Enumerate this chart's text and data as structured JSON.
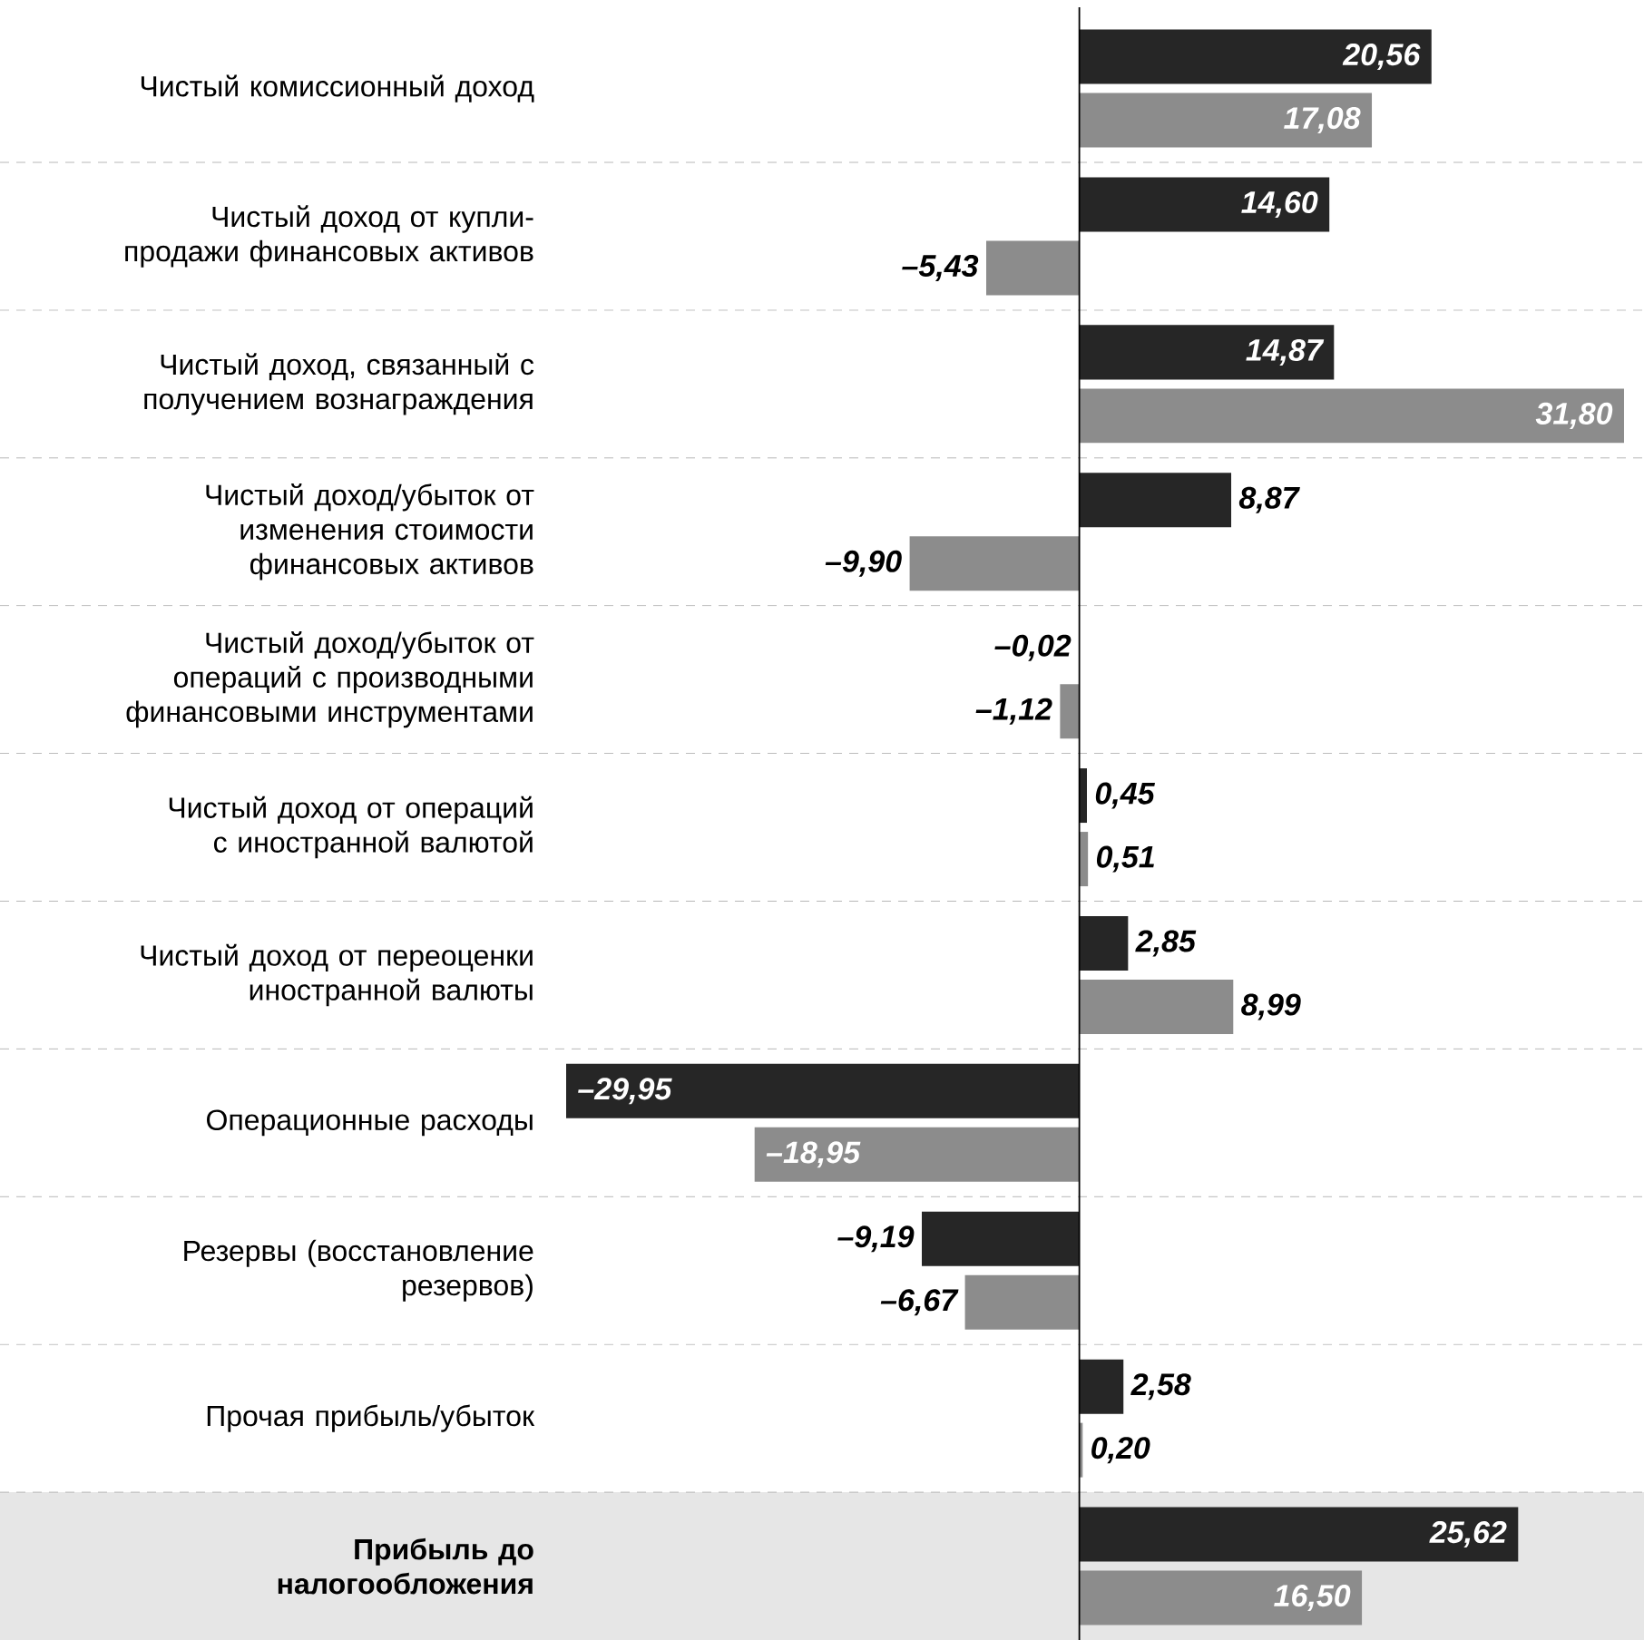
{
  "chart_data": {
    "type": "bar",
    "orientation": "horizontal",
    "categories": [
      "Чистый комиссионный доход",
      "Чистый доход от купли-продажи финансовых активов",
      "Чистый доход, связанный с получением вознаграждения",
      "Чистый доход/убыток от изменения стоимости финансовых активов",
      "Чистый доход/убыток от операций с производными финансовыми инструментами",
      "Чистый доход от операций с иностранной валютой",
      "Чистый доход от переоценки иностранной валюты",
      "Операционные расходы",
      "Резервы (восстановление резервов)",
      "Прочая прибыль/убыток",
      "Прибыль до налогообложения"
    ],
    "series": [
      {
        "color": "#262626",
        "values": [
          20.56,
          14.6,
          14.87,
          8.87,
          -0.02,
          0.45,
          2.85,
          -29.95,
          -9.19,
          2.58,
          25.62
        ],
        "value_labels": [
          "20,56",
          "14,60",
          "14,87",
          "8,87",
          "–0,02",
          "0,45",
          "2,85",
          "–29,95",
          "–9,19",
          "2,58",
          "25,62"
        ]
      },
      {
        "color": "#8c8c8c",
        "values": [
          17.08,
          -5.43,
          31.8,
          -9.9,
          -1.12,
          0.51,
          8.99,
          -18.95,
          -6.67,
          0.2,
          16.5
        ],
        "value_labels": [
          "17,08",
          "–5,43",
          "31,80",
          "–9,90",
          "–1,12",
          "0,51",
          "8,99",
          "–18,95",
          "–6,67",
          "0,20",
          "16,50"
        ]
      }
    ],
    "tick_labels": "y",
    "grid": "y",
    "bands": [
      {
        "axis": "y",
        "from": "Прибыль до налогообложения",
        "to": "Прибыль до налогообложения",
        "color": "#e6e6e6"
      }
    ]
  }
}
